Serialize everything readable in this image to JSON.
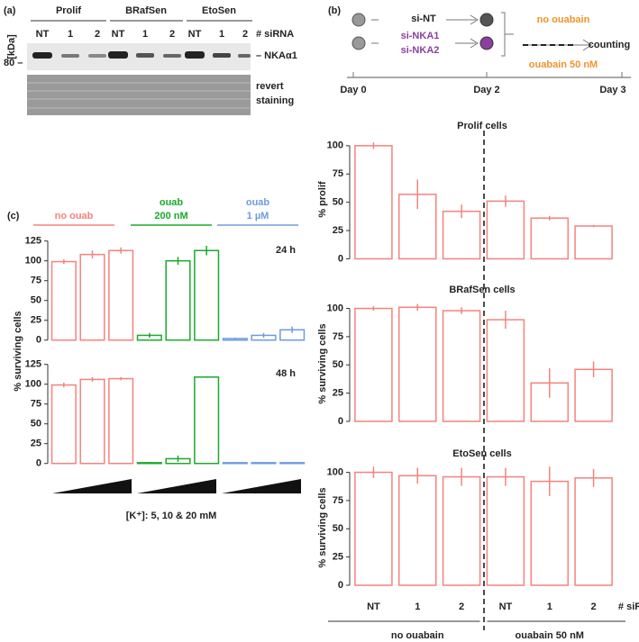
{
  "panels": {
    "a": {
      "label": "(a)",
      "groups": [
        "Prolif",
        "BRafSen",
        "EtoSen"
      ],
      "lanes": [
        "NT",
        "1",
        "2",
        "NT",
        "1",
        "2",
        "NT",
        "1",
        "2"
      ],
      "lane_title": "# siRNA",
      "unit": "[kDa]",
      "marker": "80 –",
      "band_label": "– NKAα1",
      "stain_label": [
        "revert",
        "staining"
      ]
    },
    "b": {
      "label": "(b)",
      "day0": "Day 0",
      "day2": "Day 2",
      "day3": "Day 3",
      "si": [
        "si-NT",
        "si-NKA1",
        "si-NKA2"
      ],
      "no_ouabain": "no ouabain",
      "ouabain": "ouabain 50 nM",
      "end": "counting"
    },
    "c": {
      "label": "(c)",
      "ylabel": "% surviving cells",
      "footnote": "[K⁺]: 5, 10 & 20 mM",
      "groups": [
        {
          "lines": [
            "no ouab"
          ],
          "color": "#f4837d"
        },
        {
          "lines": [
            "ouab",
            "200 nM"
          ],
          "color": "#1aaa2a"
        },
        {
          "lines": [
            "ouab",
            "1 µM"
          ],
          "color": "#6d9be0"
        }
      ]
    }
  },
  "chart_data": [
    {
      "type": "bar",
      "title": "Prolif cells",
      "ylabel": "% prolif",
      "values": [
        100,
        57,
        42,
        51,
        36,
        29
      ],
      "errors": [
        3,
        13,
        6,
        5,
        2,
        1
      ],
      "color": "#f4837d",
      "ylim": [
        -6,
        111
      ],
      "yticks": [
        0,
        25,
        50,
        75,
        100
      ]
    },
    {
      "type": "bar",
      "title": "BRafSen cells",
      "ylabel": "% surviving cells",
      "values": [
        100,
        101,
        98,
        90,
        34,
        46
      ],
      "errors": [
        2,
        3,
        3,
        8,
        13,
        7
      ],
      "color": "#f4837d",
      "ylim": [
        -8,
        110
      ],
      "yticks": [
        0,
        25,
        50,
        75,
        100
      ]
    },
    {
      "type": "bar",
      "title": "EtoSen cells",
      "ylabel": "% surviving cells",
      "categories": [
        "NT",
        "1",
        "2",
        "NT",
        "1",
        "2"
      ],
      "category_title": "# siRNA",
      "group_labels": [
        "no ouabain",
        "ouabain 50 nM"
      ],
      "values": [
        100,
        97,
        96,
        96,
        92,
        95
      ],
      "errors": [
        5,
        7,
        8,
        8,
        13,
        8
      ],
      "color": "#f4837d",
      "ylim": [
        -8,
        110
      ],
      "yticks": [
        0,
        25,
        50,
        75,
        100
      ]
    },
    {
      "type": "bar",
      "annotation": "24 h",
      "values": [
        99,
        108,
        113,
        6,
        100,
        113,
        2,
        6,
        13
      ],
      "errors": [
        3,
        5,
        4,
        3,
        5,
        6,
        1,
        3,
        4
      ],
      "colors": [
        "#f4837d",
        "#f4837d",
        "#f4837d",
        "#1aaa2a",
        "#1aaa2a",
        "#1aaa2a",
        "#6d9be0",
        "#6d9be0",
        "#6d9be0"
      ],
      "ylim": [
        -6,
        136
      ],
      "yticks": [
        0,
        25,
        50,
        75,
        100,
        125
      ]
    },
    {
      "type": "bar",
      "annotation": "48 h",
      "values": [
        99,
        106,
        107,
        1,
        6,
        109,
        1,
        1,
        1
      ],
      "errors": [
        3,
        3,
        2,
        1,
        4,
        1,
        0.5,
        0.5,
        0.5
      ],
      "colors": [
        "#f4837d",
        "#f4837d",
        "#f4837d",
        "#1aaa2a",
        "#1aaa2a",
        "#1aaa2a",
        "#6d9be0",
        "#6d9be0",
        "#6d9be0"
      ],
      "ylim": [
        -6,
        136
      ],
      "yticks": [
        0,
        25,
        50,
        75,
        100,
        125
      ]
    }
  ]
}
